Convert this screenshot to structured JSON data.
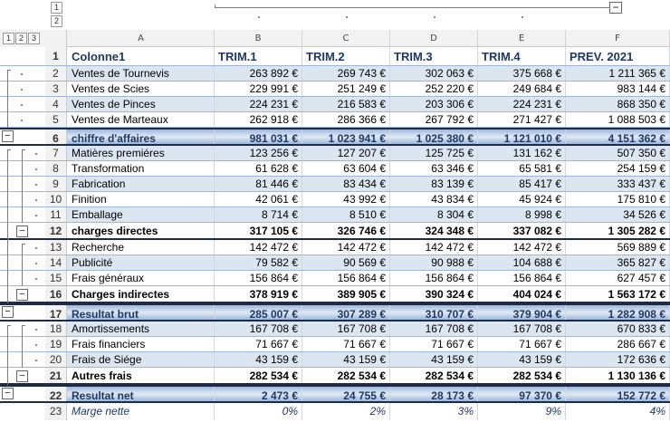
{
  "outline": {
    "row_levels": [
      "1",
      "2",
      "3"
    ],
    "col_levels": [
      "1",
      "2"
    ],
    "collapse_symbol": "−"
  },
  "columns": [
    "A",
    "B",
    "C",
    "D",
    "E",
    "F"
  ],
  "rows": [
    {
      "n": "1",
      "kind": "head",
      "label": "Colonne1",
      "vals": [
        "TRIM.1",
        "TRIM.2",
        "TRIM.3",
        "TRIM.4",
        "PREV. 2021"
      ]
    },
    {
      "n": "2",
      "kind": "data",
      "alt": true,
      "label": "Ventes de Tournevis",
      "vals": [
        "263 892 €",
        "269 743 €",
        "302 063 €",
        "375 668 €",
        "1 211 365 €"
      ]
    },
    {
      "n": "3",
      "kind": "data",
      "alt": false,
      "label": "Ventes de Scies",
      "vals": [
        "229 991 €",
        "251 249 €",
        "252 220 €",
        "249 684 €",
        "983 144 €"
      ]
    },
    {
      "n": "4",
      "kind": "data",
      "alt": true,
      "label": "Ventes de Pinces",
      "vals": [
        "224 231 €",
        "216 583 €",
        "203 306 €",
        "224 231 €",
        "868 350 €"
      ]
    },
    {
      "n": "5",
      "kind": "data",
      "alt": false,
      "label": "Ventes de Marteaux",
      "vals": [
        "262 918 €",
        "286 366 €",
        "267 792 €",
        "271 427 €",
        "1 088 503 €"
      ]
    },
    {
      "n": "6",
      "kind": "total",
      "label": "chiffre d'affaires",
      "vals": [
        "981 031 €",
        "1 023 941 €",
        "1 025 380 €",
        "1 121 010 €",
        "4 151 362 €"
      ]
    },
    {
      "n": "7",
      "kind": "data",
      "alt": true,
      "label": "Matières premiéres",
      "vals": [
        "123 256 €",
        "127 207 €",
        "125 725 €",
        "131 162 €",
        "507 350 €"
      ]
    },
    {
      "n": "8",
      "kind": "data",
      "alt": false,
      "label": "Transformation",
      "vals": [
        "61 628 €",
        "63 604 €",
        "63 346 €",
        "65 581 €",
        "254 159 €"
      ]
    },
    {
      "n": "9",
      "kind": "data",
      "alt": true,
      "label": "Fabrication",
      "vals": [
        "81 446 €",
        "83 434 €",
        "83 139 €",
        "85 417 €",
        "333 437 €"
      ]
    },
    {
      "n": "10",
      "kind": "data",
      "alt": false,
      "label": "Finition",
      "vals": [
        "42 061 €",
        "43 992 €",
        "43 834 €",
        "45 924 €",
        "175 810 €"
      ]
    },
    {
      "n": "11",
      "kind": "data",
      "alt": true,
      "label": "Emballage",
      "vals": [
        "8 714 €",
        "8 510 €",
        "8 304 €",
        "8 998 €",
        "34 526 €"
      ]
    },
    {
      "n": "12",
      "kind": "sub",
      "label": "charges directes",
      "vals": [
        "317 105 €",
        "326 746 €",
        "324 348 €",
        "337 082 €",
        "1 305 282 €"
      ]
    },
    {
      "n": "13",
      "kind": "data",
      "alt": false,
      "label": "Recherche",
      "vals": [
        "142 472 €",
        "142 472 €",
        "142 472 €",
        "142 472 €",
        "569 889 €"
      ]
    },
    {
      "n": "14",
      "kind": "data",
      "alt": true,
      "label": "Publicité",
      "vals": [
        "79 582 €",
        "90 569 €",
        "90 988 €",
        "104 688 €",
        "365 827 €"
      ]
    },
    {
      "n": "15",
      "kind": "data",
      "alt": false,
      "label": "Frais généraux",
      "vals": [
        "156 864 €",
        "156 864 €",
        "156 864 €",
        "156 864 €",
        "627 457 €"
      ]
    },
    {
      "n": "16",
      "kind": "sub",
      "label": "Charges indirectes",
      "vals": [
        "378 919 €",
        "389 905 €",
        "390 324 €",
        "404 024 €",
        "1 563 172 €"
      ]
    },
    {
      "n": "17",
      "kind": "total",
      "label": "Resultat brut",
      "vals": [
        "285 007 €",
        "307 289 €",
        "310 707 €",
        "379 904 €",
        "1 282 908 €"
      ]
    },
    {
      "n": "18",
      "kind": "data",
      "alt": true,
      "label": "Amortissements",
      "vals": [
        "167 708 €",
        "167 708 €",
        "167 708 €",
        "167 708 €",
        "670 833 €"
      ]
    },
    {
      "n": "19",
      "kind": "data",
      "alt": false,
      "label": "Frais financiers",
      "vals": [
        "71 667 €",
        "71 667 €",
        "71 667 €",
        "71 667 €",
        "286 667 €"
      ]
    },
    {
      "n": "20",
      "kind": "data",
      "alt": true,
      "label": "Frais de Siége",
      "vals": [
        "43 159 €",
        "43 159 €",
        "43 159 €",
        "43 159 €",
        "172 636 €"
      ]
    },
    {
      "n": "21",
      "kind": "sub",
      "label": "Autres frais",
      "vals": [
        "282 534 €",
        "282 534 €",
        "282 534 €",
        "282 534 €",
        "1 130 136 €"
      ]
    },
    {
      "n": "22",
      "kind": "total",
      "label": "Resultat net",
      "vals": [
        "2 473 €",
        "24 755 €",
        "28 173 €",
        "97 370 €",
        "152 772 €"
      ]
    },
    {
      "n": "23",
      "kind": "marge",
      "label": "Marge nette",
      "vals": [
        "0%",
        "2%",
        "3%",
        "9%",
        "4%"
      ]
    }
  ]
}
